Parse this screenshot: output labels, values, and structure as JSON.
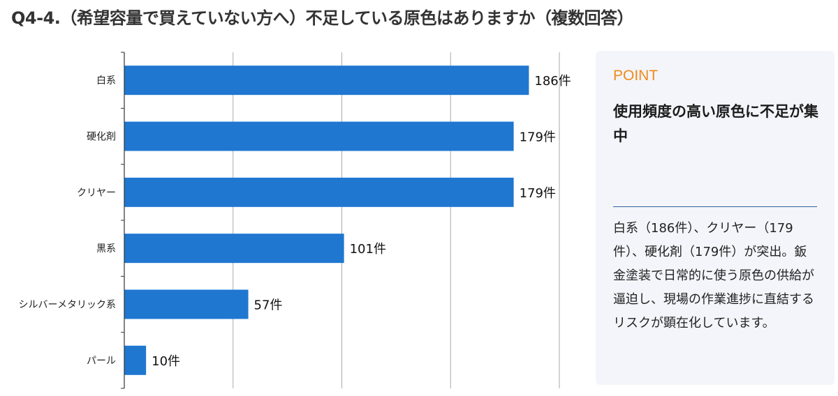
{
  "title": "Q4-4.（希望容量で買えていない方へ）不足している原色はありますか（複数回答）",
  "chart_data": {
    "type": "bar",
    "orientation": "horizontal",
    "categories": [
      "白系",
      "硬化剤",
      "クリヤー",
      "黒系",
      "シルバーメタリック系",
      "パール"
    ],
    "values": [
      186,
      179,
      179,
      101,
      57,
      10
    ],
    "value_labels": [
      "186件",
      "179件",
      "179件",
      "101件",
      "57件",
      "10件"
    ],
    "xlim": [
      0,
      200
    ],
    "grid": true,
    "bar_color": "#1f77d0",
    "grid_color": "#aaaaaa",
    "axis_color": "#333333"
  },
  "point": {
    "tag": "POINT",
    "headline": "使用頻度の高い原色に不足が集中",
    "body": "白系（186件）、クリヤー（179件）、硬化剤（179件）が突出。鈑金塗装で日常的に使う原色の供給が逼迫し、現場の作業進捗に直結するリスクが顕在化しています。",
    "tag_color": "#f08a1c",
    "rule_color": "#2f5f9a",
    "bg_color": "#f4f5fa"
  }
}
